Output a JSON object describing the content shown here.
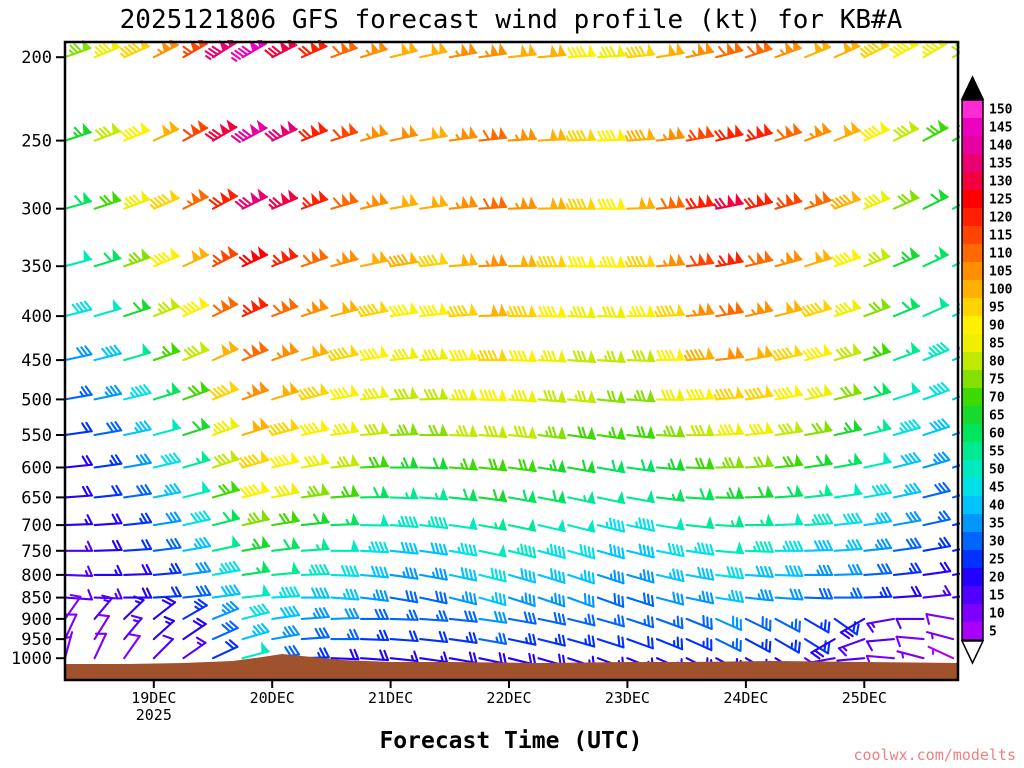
{
  "title": "2025121806 GFS forecast wind profile (kt) for KB#A",
  "xlabel": "Forecast Time (UTC)",
  "watermark": "coolwx.com/modelts",
  "chart_data": {
    "type": "wind-barb-time-height",
    "x_day_labels": [
      "19DEC",
      "20DEC",
      "21DEC",
      "22DEC",
      "23DEC",
      "24DEC",
      "25DEC"
    ],
    "x_year_label": "2025",
    "time_start": "18DEC 06UTC 2025",
    "time_step_hours": 6,
    "n_times": 31,
    "pressure_levels_hpa": [
      200,
      250,
      300,
      350,
      400,
      450,
      500,
      550,
      600,
      650,
      700,
      750,
      800,
      850,
      900,
      950,
      1000
    ],
    "units": "kt",
    "base_dirs_deg": [
      250,
      248,
      246,
      243,
      240,
      238,
      240,
      243,
      246,
      250,
      253,
      256,
      258,
      260,
      262,
      264,
      265,
      266,
      266,
      264,
      261,
      258,
      255,
      252,
      250,
      248,
      246,
      244,
      242,
      240,
      238
    ],
    "series": [
      {
        "level": 200,
        "dir_offset_deg": 0,
        "speeds_kt": [
          75,
          85,
          95,
          105,
          115,
          135,
          145,
          130,
          120,
          110,
          105,
          100,
          100,
          105,
          105,
          100,
          100,
          90,
          85,
          95,
          100,
          105,
          110,
          110,
          105,
          100,
          100,
          95,
          90,
          85,
          80
        ]
      },
      {
        "level": 250,
        "dir_offset_deg": 2,
        "speeds_kt": [
          65,
          78,
          90,
          100,
          112,
          128,
          140,
          132,
          120,
          112,
          105,
          102,
          100,
          104,
          108,
          104,
          100,
          95,
          90,
          96,
          105,
          115,
          120,
          116,
          110,
          104,
          98,
          88,
          78,
          70,
          64
        ]
      },
      {
        "level": 300,
        "dir_offset_deg": 4,
        "speeds_kt": [
          58,
          70,
          84,
          95,
          106,
          120,
          132,
          126,
          116,
          110,
          104,
          100,
          100,
          104,
          108,
          104,
          100,
          94,
          90,
          100,
          110,
          120,
          126,
          120,
          114,
          106,
          96,
          84,
          72,
          62,
          56
        ]
      },
      {
        "level": 350,
        "dir_offset_deg": 5,
        "speeds_kt": [
          50,
          60,
          74,
          88,
          100,
          114,
          122,
          116,
          110,
          104,
          100,
          96,
          95,
          99,
          104,
          100,
          95,
          90,
          86,
          94,
          104,
          112,
          116,
          110,
          105,
          98,
          88,
          76,
          65,
          56,
          50
        ]
      },
      {
        "level": 400,
        "dir_offset_deg": 6,
        "speeds_kt": [
          42,
          50,
          62,
          76,
          90,
          108,
          116,
          110,
          105,
          100,
          95,
          90,
          90,
          94,
          99,
          95,
          90,
          85,
          81,
          86,
          95,
          104,
          110,
          105,
          100,
          94,
          85,
          72,
          60,
          51,
          45
        ]
      },
      {
        "level": 450,
        "dir_offset_deg": 8,
        "speeds_kt": [
          32,
          40,
          52,
          66,
          80,
          100,
          110,
          105,
          100,
          95,
          90,
          85,
          85,
          89,
          94,
          90,
          85,
          80,
          76,
          80,
          89,
          96,
          101,
          99,
          94,
          89,
          79,
          66,
          55,
          46,
          40
        ]
      },
      {
        "level": 500,
        "dir_offset_deg": 10,
        "speeds_kt": [
          26,
          33,
          43,
          56,
          70,
          92,
          105,
          100,
          95,
          90,
          85,
          80,
          80,
          84,
          88,
          85,
          80,
          76,
          72,
          75,
          82,
          90,
          95,
          92,
          88,
          82,
          72,
          60,
          50,
          42,
          37
        ]
      },
      {
        "level": 550,
        "dir_offset_deg": 12,
        "speeds_kt": [
          22,
          28,
          37,
          48,
          62,
          85,
          100,
          95,
          90,
          84,
          78,
          73,
          72,
          76,
          80,
          78,
          74,
          70,
          66,
          68,
          74,
          80,
          85,
          82,
          78,
          72,
          64,
          54,
          45,
          38,
          33
        ]
      },
      {
        "level": 600,
        "dir_offset_deg": 14,
        "speeds_kt": [
          20,
          25,
          32,
          42,
          55,
          78,
          95,
          90,
          82,
          76,
          70,
          64,
          62,
          66,
          70,
          68,
          65,
          62,
          58,
          60,
          64,
          70,
          74,
          72,
          68,
          62,
          56,
          48,
          40,
          34,
          30
        ]
      },
      {
        "level": 650,
        "dir_offset_deg": 16,
        "speeds_kt": [
          18,
          22,
          28,
          36,
          48,
          70,
          88,
          82,
          74,
          66,
          60,
          55,
          54,
          58,
          62,
          60,
          58,
          55,
          52,
          52,
          56,
          60,
          64,
          62,
          58,
          54,
          48,
          42,
          36,
          30,
          27
        ]
      },
      {
        "level": 700,
        "dir_offset_deg": 18,
        "speeds_kt": [
          16,
          20,
          25,
          32,
          42,
          60,
          75,
          70,
          62,
          56,
          50,
          46,
          46,
          50,
          54,
          52,
          50,
          48,
          45,
          45,
          48,
          52,
          55,
          53,
          50,
          46,
          42,
          37,
          32,
          27,
          24
        ]
      },
      {
        "level": 750,
        "dir_offset_deg": 20,
        "speeds_kt": [
          15,
          18,
          22,
          28,
          36,
          52,
          65,
          60,
          54,
          48,
          44,
          40,
          40,
          44,
          48,
          46,
          44,
          42,
          40,
          40,
          42,
          45,
          48,
          46,
          44,
          40,
          37,
          33,
          28,
          24,
          21
        ]
      },
      {
        "level": 800,
        "dir_offset_deg": 22,
        "speeds_kt": [
          14,
          16,
          20,
          25,
          32,
          45,
          56,
          52,
          46,
          42,
          38,
          35,
          35,
          38,
          42,
          40,
          38,
          37,
          35,
          35,
          37,
          40,
          42,
          40,
          38,
          35,
          32,
          28,
          24,
          20,
          17
        ]
      },
      {
        "level": 850,
        "dir_offset_deg": 24,
        "speeds_kt": [
          12,
          15,
          18,
          22,
          28,
          38,
          48,
          45,
          40,
          36,
          33,
          30,
          30,
          33,
          36,
          35,
          33,
          32,
          30,
          30,
          32,
          34,
          36,
          34,
          32,
          30,
          27,
          23,
          19,
          15,
          12
        ]
      },
      {
        "level": 900,
        "dirs_deg": [
          215,
          220,
          226,
          232,
          240,
          248,
          256,
          262,
          266,
          268,
          270,
          272,
          274,
          276,
          278,
          280,
          282,
          284,
          286,
          288,
          290,
          292,
          294,
          296,
          298,
          300,
          305,
          60,
          80,
          90,
          100
        ],
        "speeds_kt": [
          10,
          13,
          16,
          20,
          25,
          33,
          42,
          40,
          35,
          31,
          28,
          26,
          26,
          28,
          31,
          30,
          28,
          27,
          26,
          26,
          27,
          29,
          31,
          29,
          27,
          25,
          22,
          18,
          14,
          11,
          9
        ]
      },
      {
        "level": 950,
        "dirs_deg": [
          205,
          212,
          220,
          228,
          236,
          246,
          254,
          260,
          266,
          270,
          272,
          274,
          276,
          278,
          280,
          282,
          284,
          286,
          288,
          290,
          292,
          294,
          296,
          298,
          300,
          302,
          60,
          70,
          85,
          95,
          105
        ],
        "speeds_kt": [
          8,
          10,
          13,
          16,
          20,
          28,
          36,
          34,
          30,
          26,
          24,
          22,
          22,
          24,
          26,
          25,
          24,
          23,
          22,
          22,
          23,
          25,
          26,
          25,
          23,
          21,
          18,
          14,
          11,
          9,
          7
        ]
      },
      {
        "level": 1000,
        "dirs_deg": [
          195,
          205,
          215,
          225,
          235,
          245,
          255,
          262,
          268,
          272,
          274,
          276,
          278,
          280,
          282,
          284,
          286,
          288,
          290,
          292,
          294,
          296,
          298,
          300,
          302,
          304,
          80,
          85,
          95,
          105,
          115
        ],
        "speeds_kt": [
          6,
          8,
          10,
          12,
          15,
          22,
          48,
          30,
          24,
          20,
          18,
          16,
          16,
          18,
          20,
          19,
          18,
          17,
          16,
          16,
          17,
          18,
          20,
          19,
          17,
          15,
          13,
          11,
          9,
          7,
          5
        ]
      }
    ],
    "colorbar": {
      "units": "kt",
      "over_color": "#000000",
      "under_color": "#ffffff",
      "stops": [
        {
          "value": 5,
          "color": "#aa00ff"
        },
        {
          "value": 10,
          "color": "#7d00ff"
        },
        {
          "value": 15,
          "color": "#5000ff"
        },
        {
          "value": 20,
          "color": "#2300ff"
        },
        {
          "value": 25,
          "color": "#0031ff"
        },
        {
          "value": 30,
          "color": "#0064ff"
        },
        {
          "value": 35,
          "color": "#0098ff"
        },
        {
          "value": 40,
          "color": "#00c3ff"
        },
        {
          "value": 45,
          "color": "#00e0e8"
        },
        {
          "value": 50,
          "color": "#00eac0"
        },
        {
          "value": 55,
          "color": "#00ea92"
        },
        {
          "value": 60,
          "color": "#00e45e"
        },
        {
          "value": 65,
          "color": "#16da2e"
        },
        {
          "value": 70,
          "color": "#3cda00"
        },
        {
          "value": 75,
          "color": "#84e000"
        },
        {
          "value": 80,
          "color": "#c0ea00"
        },
        {
          "value": 85,
          "color": "#eef000"
        },
        {
          "value": 90,
          "color": "#fff000"
        },
        {
          "value": 95,
          "color": "#ffd200"
        },
        {
          "value": 100,
          "color": "#ffb000"
        },
        {
          "value": 105,
          "color": "#ff8e00"
        },
        {
          "value": 110,
          "color": "#ff6a00"
        },
        {
          "value": 115,
          "color": "#ff4600"
        },
        {
          "value": 120,
          "color": "#ff2000"
        },
        {
          "value": 125,
          "color": "#ff0000"
        },
        {
          "value": 130,
          "color": "#f40040"
        },
        {
          "value": 135,
          "color": "#ea0071"
        },
        {
          "value": 140,
          "color": "#e600a0"
        },
        {
          "value": 145,
          "color": "#ee00c0"
        },
        {
          "value": 150,
          "color": "#ff2ad4"
        }
      ]
    },
    "terrain_color": "#a0522d",
    "terrain_profile": [
      [
        0,
        664
      ],
      [
        12,
        664
      ],
      [
        24,
        663
      ],
      [
        34,
        661
      ],
      [
        40,
        657
      ],
      [
        44,
        654
      ],
      [
        48,
        656
      ],
      [
        56,
        660
      ],
      [
        66,
        662
      ],
      [
        78,
        662
      ],
      [
        96,
        663
      ],
      [
        114,
        662
      ],
      [
        126,
        662
      ],
      [
        144,
        661
      ],
      [
        162,
        662
      ],
      [
        181,
        663
      ]
    ]
  }
}
